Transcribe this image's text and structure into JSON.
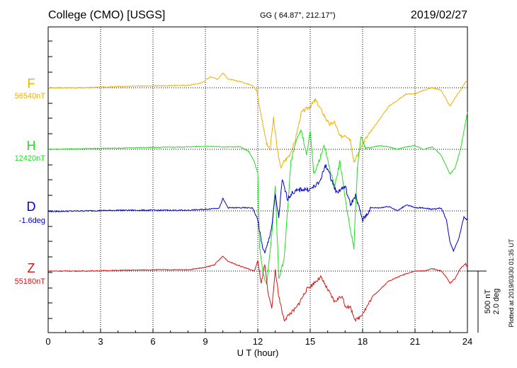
{
  "header": {
    "station": "College (CMO)  [USGS]",
    "coords": "GG ( 64.87°, 212.17°)",
    "date": "2019/02/27"
  },
  "footer": {
    "plotted": "Plotted at 2019/03/30 01:35 UT"
  },
  "scale": {
    "nt": "500 nT",
    "deg": "2.0 deg"
  },
  "chart_data": {
    "type": "line",
    "xlabel": "U T (hour)",
    "xlim": [
      0,
      24
    ],
    "xticks": [
      0,
      3,
      6,
      9,
      12,
      15,
      18,
      21,
      24
    ],
    "grid": true,
    "series": [
      {
        "name": "F",
        "baseline_label": "56540nT",
        "color": "#f0b000",
        "x": [
          0,
          2,
          4,
          6,
          8,
          8.8,
          9.3,
          9.7,
          10.0,
          10.3,
          11,
          11.7,
          11.95,
          12.05,
          12.3,
          12.5,
          12.7,
          12.9,
          13.1,
          13.3,
          13.5,
          13.8,
          14.1,
          14.5,
          15.0,
          15.3,
          15.7,
          16.1,
          16.4,
          16.7,
          17.0,
          17.3,
          17.5,
          17.7,
          18.0,
          18.5,
          19,
          19.5,
          20,
          20.5,
          21,
          21.5,
          22,
          22.5,
          22.8,
          23.0,
          23.3,
          23.6,
          23.9,
          24
        ],
        "values": [
          0,
          0,
          10,
          15,
          20,
          40,
          90,
          70,
          120,
          70,
          50,
          20,
          -30,
          -120,
          -300,
          -450,
          -500,
          -250,
          -480,
          -650,
          -600,
          -550,
          -450,
          -200,
          -150,
          -100,
          -200,
          -300,
          -280,
          -400,
          -380,
          -420,
          -600,
          -550,
          -450,
          -350,
          -250,
          -150,
          -100,
          -50,
          -50,
          -20,
          0,
          -20,
          -100,
          -150,
          -80,
          -20,
          50,
          40
        ]
      },
      {
        "name": "H",
        "baseline_label": "12420nT",
        "color": "#22dd22",
        "x": [
          0,
          2,
          4,
          6,
          8,
          9,
          10,
          11,
          11.5,
          11.8,
          12.0,
          12.1,
          12.3,
          12.5,
          12.8,
          13.0,
          13.2,
          13.5,
          13.7,
          13.9,
          14.2,
          14.5,
          14.8,
          15.0,
          15.2,
          15.5,
          15.8,
          16.1,
          16.4,
          16.7,
          17.0,
          17.3,
          17.5,
          17.7,
          17.9,
          18.2,
          18.6,
          19,
          19.5,
          20,
          20.5,
          21,
          21.5,
          22,
          22.5,
          23.0,
          23.3,
          23.6,
          24
        ],
        "values": [
          0,
          5,
          10,
          15,
          20,
          25,
          20,
          20,
          -20,
          -100,
          -200,
          -800,
          -1000,
          -1100,
          -700,
          -300,
          -1050,
          -900,
          -500,
          -100,
          80,
          150,
          -50,
          150,
          -200,
          -100,
          30,
          -150,
          -300,
          -100,
          -400,
          -650,
          -800,
          -150,
          100,
          0,
          20,
          30,
          20,
          0,
          20,
          30,
          0,
          20,
          -50,
          -200,
          -150,
          0,
          300
        ]
      },
      {
        "name": "D",
        "baseline_label": "-1.6deg",
        "color": "#0000cc",
        "x": [
          0,
          2,
          4,
          6,
          8,
          9,
          9.8,
          10.0,
          10.3,
          11,
          11.7,
          12.0,
          12.2,
          12.4,
          12.6,
          12.8,
          13.0,
          13.2,
          13.4,
          13.7,
          14.0,
          14.5,
          15.0,
          15.5,
          15.9,
          16.1,
          16.5,
          17.0,
          17.3,
          17.6,
          18.0,
          18.5,
          19,
          19.5,
          20,
          20.5,
          21,
          21.5,
          22,
          22.5,
          22.8,
          23.0,
          23.2,
          23.5,
          23.8,
          24
        ],
        "values": [
          -0.02,
          0,
          0.02,
          0.02,
          0.02,
          0.05,
          0.1,
          0.4,
          0.1,
          0.1,
          0.1,
          -0.3,
          -1.0,
          -1.4,
          -1.0,
          -0.5,
          0.5,
          -0.2,
          1.0,
          0.4,
          0.6,
          0.7,
          0.7,
          0.9,
          1.5,
          1.2,
          0.6,
          0.8,
          0.2,
          0.5,
          -0.3,
          0.1,
          0.1,
          0.15,
          0.0,
          0.2,
          0.1,
          0.1,
          0.05,
          0.1,
          -0.3,
          -1.0,
          -1.3,
          -0.9,
          -0.2,
          -0.3
        ]
      },
      {
        "name": "Z",
        "baseline_label": "55180nT",
        "color": "#dd1111",
        "x": [
          0,
          2,
          4,
          6,
          8,
          9,
          9.5,
          10.0,
          10.3,
          11,
          11.8,
          12.0,
          12.2,
          12.4,
          12.6,
          12.8,
          13.0,
          13.2,
          13.5,
          13.8,
          14.2,
          14.8,
          15.2,
          15.6,
          16.0,
          16.4,
          16.8,
          17.0,
          17.3,
          17.6,
          17.8,
          18.2,
          18.6,
          19,
          19.5,
          20,
          20.5,
          21,
          21.5,
          22,
          22.5,
          22.8,
          23.0,
          23.3,
          23.6,
          23.9,
          24
        ],
        "values": [
          0,
          0,
          5,
          10,
          10,
          30,
          50,
          120,
          80,
          40,
          0,
          80,
          -100,
          50,
          -200,
          -300,
          0,
          -200,
          -400,
          -350,
          -300,
          -150,
          -100,
          -50,
          -150,
          -250,
          -200,
          -280,
          -300,
          -400,
          -380,
          -300,
          -200,
          -150,
          -80,
          -50,
          -20,
          0,
          0,
          20,
          0,
          -50,
          -100,
          -60,
          20,
          60,
          30
        ]
      }
    ]
  }
}
